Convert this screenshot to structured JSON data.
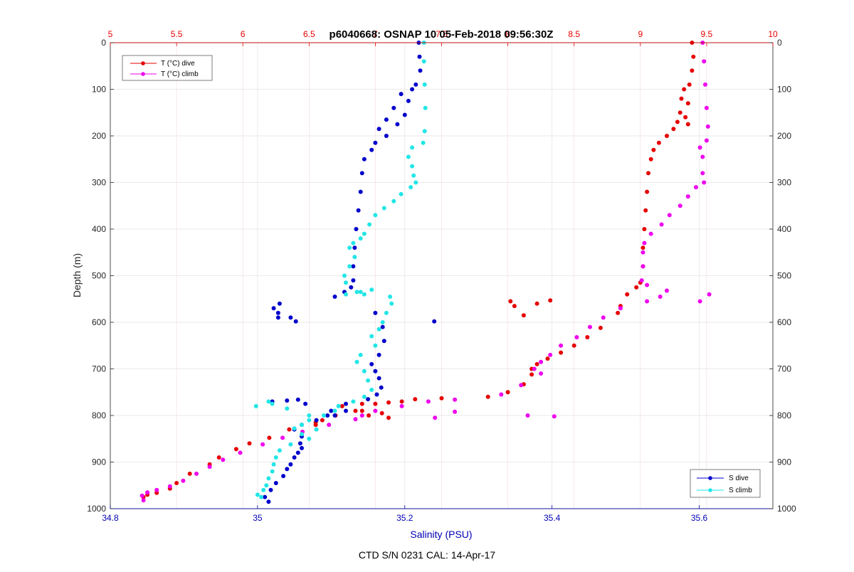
{
  "chart_data": {
    "type": "scatter",
    "title": "p6040668: OSNAP 10 05-Feb-2018 09:56:30Z",
    "caption": "CTD S/N 0231  CAL: 14-Apr-17",
    "ylabel": "Depth (m)",
    "xlabel_bottom": "Salinity (PSU)",
    "xlabel_top": "",
    "ylim": [
      0,
      1000
    ],
    "y_reversed": true,
    "xlim_bottom": [
      34.8,
      35.7
    ],
    "xlim_top": [
      5,
      10
    ],
    "x_ticks_bottom": [
      "34.8",
      "35",
      "35.2",
      "35.4",
      "35.6"
    ],
    "x_ticks_top": [
      "5",
      "5.5",
      "6",
      "6.5",
      "7",
      "7.5",
      "8",
      "8.5",
      "9",
      "9.5",
      "10"
    ],
    "y_ticks": [
      "0",
      "100",
      "200",
      "300",
      "400",
      "500",
      "600",
      "700",
      "800",
      "900",
      "1000"
    ],
    "grid": true,
    "colors": {
      "t_dive": "#e60000",
      "t_climb": "#ee00ee",
      "s_dive": "#0000cc",
      "s_climb": "#22e6e6",
      "salinity_axis": "#0000b4",
      "temperature_axis": "#e60000"
    },
    "legends": [
      {
        "position": "top-left",
        "entries": [
          {
            "label": "T (°C) dive",
            "color": "#e60000"
          },
          {
            "label": "T (°C) climb",
            "color": "#ee00ee"
          }
        ]
      },
      {
        "position": "bottom-right",
        "entries": [
          {
            "label": "S dive",
            "color": "#0000cc"
          },
          {
            "label": "S climb",
            "color": "#22e6e6"
          }
        ]
      }
    ],
    "series": [
      {
        "name": "T (°C) dive",
        "axis": "top",
        "points": [
          [
            9.39,
            0
          ],
          [
            9.4,
            30
          ],
          [
            9.39,
            60
          ],
          [
            9.37,
            90
          ],
          [
            9.33,
            100
          ],
          [
            9.31,
            120
          ],
          [
            9.36,
            130
          ],
          [
            9.3,
            150
          ],
          [
            9.34,
            160
          ],
          [
            9.28,
            170
          ],
          [
            9.36,
            175
          ],
          [
            9.25,
            185
          ],
          [
            9.2,
            200
          ],
          [
            9.14,
            215
          ],
          [
            9.1,
            230
          ],
          [
            9.08,
            250
          ],
          [
            9.06,
            280
          ],
          [
            9.05,
            320
          ],
          [
            9.04,
            360
          ],
          [
            9.03,
            400
          ],
          [
            9.02,
            440
          ],
          [
            9.02,
            480
          ],
          [
            9.0,
            515
          ],
          [
            8.97,
            525
          ],
          [
            8.9,
            540
          ],
          [
            8.85,
            565
          ],
          [
            8.83,
            580
          ],
          [
            8.7,
            612
          ],
          [
            8.6,
            632
          ],
          [
            8.5,
            650
          ],
          [
            8.4,
            665
          ],
          [
            8.3,
            678
          ],
          [
            8.22,
            690
          ],
          [
            8.18,
            700
          ],
          [
            8.18,
            712
          ],
          [
            8.12,
            733
          ],
          [
            8.0,
            750
          ],
          [
            7.85,
            760
          ],
          [
            7.5,
            763
          ],
          [
            7.3,
            765
          ],
          [
            7.2,
            770
          ],
          [
            7.1,
            772
          ],
          [
            7.0,
            775
          ],
          [
            6.9,
            775
          ],
          [
            6.75,
            780
          ],
          [
            6.85,
            790
          ],
          [
            6.7,
            800
          ],
          [
            6.55,
            815
          ],
          [
            6.35,
            830
          ],
          [
            6.2,
            848
          ],
          [
            6.05,
            860
          ],
          [
            5.95,
            872
          ],
          [
            5.82,
            890
          ],
          [
            5.75,
            905
          ],
          [
            5.6,
            925
          ],
          [
            5.5,
            945
          ],
          [
            5.45,
            957
          ],
          [
            5.35,
            966
          ],
          [
            5.28,
            970
          ],
          [
            5.25,
            975
          ],
          [
            8.02,
            555
          ],
          [
            8.05,
            565
          ],
          [
            8.22,
            560
          ],
          [
            8.32,
            553
          ],
          [
            8.12,
            585
          ],
          [
            6.9,
            790
          ],
          [
            6.95,
            800
          ],
          [
            7.05,
            795
          ],
          [
            7.1,
            805
          ],
          [
            6.6,
            810
          ],
          [
            6.55,
            820
          ]
        ]
      },
      {
        "name": "T (°C) climb",
        "axis": "top",
        "points": [
          [
            9.47,
            0
          ],
          [
            9.48,
            40
          ],
          [
            9.49,
            90
          ],
          [
            9.5,
            140
          ],
          [
            9.51,
            180
          ],
          [
            9.5,
            210
          ],
          [
            9.45,
            225
          ],
          [
            9.47,
            245
          ],
          [
            9.47,
            280
          ],
          [
            9.48,
            300
          ],
          [
            9.42,
            310
          ],
          [
            9.36,
            330
          ],
          [
            9.3,
            350
          ],
          [
            9.22,
            370
          ],
          [
            9.16,
            390
          ],
          [
            9.08,
            410
          ],
          [
            9.03,
            430
          ],
          [
            9.02,
            450
          ],
          [
            9.02,
            480
          ],
          [
            9.01,
            510
          ],
          [
            9.05,
            520
          ],
          [
            9.2,
            532
          ],
          [
            9.15,
            545
          ],
          [
            9.05,
            555
          ],
          [
            8.85,
            570
          ],
          [
            8.72,
            590
          ],
          [
            8.62,
            610
          ],
          [
            8.52,
            632
          ],
          [
            8.4,
            650
          ],
          [
            8.32,
            670
          ],
          [
            8.25,
            685
          ],
          [
            8.2,
            700
          ],
          [
            8.25,
            710
          ],
          [
            8.1,
            735
          ],
          [
            7.95,
            755
          ],
          [
            7.6,
            766
          ],
          [
            7.4,
            770
          ],
          [
            7.2,
            780
          ],
          [
            7.0,
            790
          ],
          [
            6.9,
            800
          ],
          [
            6.85,
            808
          ],
          [
            6.65,
            820
          ],
          [
            6.45,
            835
          ],
          [
            6.3,
            848
          ],
          [
            6.15,
            862
          ],
          [
            5.98,
            880
          ],
          [
            5.85,
            895
          ],
          [
            5.75,
            910
          ],
          [
            5.65,
            925
          ],
          [
            5.55,
            940
          ],
          [
            5.45,
            952
          ],
          [
            5.35,
            960
          ],
          [
            5.28,
            965
          ],
          [
            5.24,
            972
          ],
          [
            5.25,
            982
          ],
          [
            9.52,
            540
          ],
          [
            9.45,
            555
          ],
          [
            8.15,
            800
          ],
          [
            8.35,
            802
          ],
          [
            7.6,
            792
          ],
          [
            7.45,
            805
          ]
        ]
      },
      {
        "name": "S dive",
        "axis": "bottom",
        "points": [
          [
            35.219,
            0
          ],
          [
            35.22,
            30
          ],
          [
            35.221,
            60
          ],
          [
            35.215,
            90
          ],
          [
            35.21,
            100
          ],
          [
            35.195,
            110
          ],
          [
            35.205,
            125
          ],
          [
            35.185,
            140
          ],
          [
            35.2,
            155
          ],
          [
            35.175,
            165
          ],
          [
            35.19,
            175
          ],
          [
            35.165,
            185
          ],
          [
            35.175,
            200
          ],
          [
            35.16,
            215
          ],
          [
            35.155,
            230
          ],
          [
            35.145,
            250
          ],
          [
            35.142,
            280
          ],
          [
            35.14,
            320
          ],
          [
            35.137,
            360
          ],
          [
            35.134,
            400
          ],
          [
            35.132,
            440
          ],
          [
            35.13,
            480
          ],
          [
            35.13,
            510
          ],
          [
            35.127,
            525
          ],
          [
            35.118,
            535
          ],
          [
            35.105,
            545
          ],
          [
            35.16,
            580
          ],
          [
            35.17,
            610
          ],
          [
            35.172,
            640
          ],
          [
            35.165,
            670
          ],
          [
            35.155,
            690
          ],
          [
            35.16,
            705
          ],
          [
            35.165,
            720
          ],
          [
            35.168,
            740
          ],
          [
            35.162,
            755
          ],
          [
            35.15,
            765
          ],
          [
            35.12,
            775
          ],
          [
            35.1,
            790
          ],
          [
            35.095,
            800
          ],
          [
            35.08,
            810
          ],
          [
            35.06,
            820
          ],
          [
            35.05,
            830
          ],
          [
            35.06,
            845
          ],
          [
            35.058,
            860
          ],
          [
            35.06,
            870
          ],
          [
            35.055,
            880
          ],
          [
            35.05,
            890
          ],
          [
            35.045,
            905
          ],
          [
            35.04,
            915
          ],
          [
            35.035,
            930
          ],
          [
            35.025,
            945
          ],
          [
            35.018,
            960
          ],
          [
            35.01,
            975
          ],
          [
            35.015,
            985
          ],
          [
            35.022,
            570
          ],
          [
            35.028,
            580
          ],
          [
            35.03,
            560
          ],
          [
            35.028,
            590
          ],
          [
            35.045,
            590
          ],
          [
            35.052,
            598
          ],
          [
            35.24,
            598
          ],
          [
            35.02,
            770
          ],
          [
            35.04,
            768
          ],
          [
            35.055,
            766
          ],
          [
            35.065,
            775
          ],
          [
            35.12,
            790
          ],
          [
            35.105,
            800
          ]
        ]
      },
      {
        "name": "S climb",
        "axis": "bottom",
        "points": [
          [
            35.226,
            0
          ],
          [
            35.226,
            40
          ],
          [
            35.227,
            90
          ],
          [
            35.228,
            140
          ],
          [
            35.227,
            190
          ],
          [
            35.225,
            215
          ],
          [
            35.21,
            225
          ],
          [
            35.205,
            245
          ],
          [
            35.21,
            265
          ],
          [
            35.212,
            285
          ],
          [
            35.215,
            300
          ],
          [
            35.208,
            310
          ],
          [
            35.195,
            325
          ],
          [
            35.185,
            340
          ],
          [
            35.172,
            355
          ],
          [
            35.16,
            370
          ],
          [
            35.152,
            390
          ],
          [
            35.145,
            410
          ],
          [
            35.14,
            420
          ],
          [
            35.13,
            430
          ],
          [
            35.125,
            440
          ],
          [
            35.132,
            460
          ],
          [
            35.125,
            480
          ],
          [
            35.118,
            500
          ],
          [
            35.12,
            515
          ],
          [
            35.14,
            535
          ],
          [
            35.18,
            545
          ],
          [
            35.182,
            560
          ],
          [
            35.175,
            580
          ],
          [
            35.17,
            600
          ],
          [
            35.165,
            615
          ],
          [
            35.155,
            630
          ],
          [
            35.16,
            650
          ],
          [
            35.14,
            670
          ],
          [
            35.135,
            685
          ],
          [
            35.145,
            705
          ],
          [
            35.15,
            725
          ],
          [
            35.155,
            745
          ],
          [
            35.145,
            760
          ],
          [
            35.13,
            770
          ],
          [
            35.11,
            780
          ],
          [
            35.105,
            790
          ],
          [
            35.09,
            800
          ],
          [
            35.07,
            810
          ],
          [
            35.06,
            820
          ],
          [
            35.05,
            828
          ],
          [
            35.06,
            840
          ],
          [
            35.07,
            850
          ],
          [
            35.045,
            862
          ],
          [
            35.03,
            875
          ],
          [
            35.025,
            890
          ],
          [
            35.022,
            905
          ],
          [
            35.02,
            920
          ],
          [
            35.015,
            935
          ],
          [
            35.012,
            950
          ],
          [
            35.008,
            960
          ],
          [
            35.0,
            970
          ],
          [
            35.005,
            975
          ],
          [
            34.998,
            780
          ],
          [
            35.015,
            770
          ],
          [
            35.02,
            775
          ],
          [
            35.04,
            785
          ],
          [
            35.12,
            540
          ],
          [
            35.135,
            535
          ],
          [
            35.145,
            540
          ],
          [
            35.155,
            530
          ],
          [
            35.07,
            800
          ],
          [
            35.08,
            830
          ]
        ]
      }
    ]
  }
}
